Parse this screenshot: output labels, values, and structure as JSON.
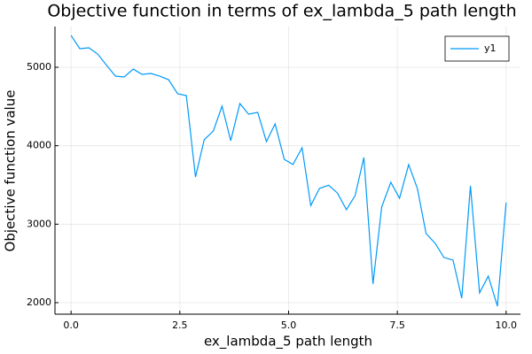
{
  "chart_data": {
    "type": "line",
    "title": "Objective function in terms of ex_lambda_5 path length",
    "x_label": "ex_lambda_5 path length",
    "y_label": "Objective function value",
    "x": [
      0,
      0.2,
      0.41,
      0.61,
      0.82,
      1.02,
      1.22,
      1.43,
      1.63,
      1.84,
      2.04,
      2.24,
      2.45,
      2.65,
      2.86,
      3.06,
      3.27,
      3.47,
      3.67,
      3.88,
      4.08,
      4.29,
      4.49,
      4.69,
      4.9,
      5.1,
      5.31,
      5.51,
      5.71,
      5.92,
      6.12,
      6.33,
      6.53,
      6.73,
      6.94,
      7.14,
      7.35,
      7.55,
      7.76,
      7.96,
      8.16,
      8.37,
      8.57,
      8.78,
      8.98,
      9.18,
      9.39,
      9.59,
      9.8,
      10
    ],
    "series": [
      {
        "name": "y1",
        "color": "#009af9",
        "values": [
          5406,
          5237,
          5248,
          5169,
          5023,
          4887,
          4876,
          4977,
          4910,
          4921,
          4887,
          4842,
          4662,
          4639,
          3602,
          4076,
          4188,
          4504,
          4064,
          4538,
          4402,
          4425,
          4053,
          4278,
          3827,
          3760,
          3974,
          3237,
          3456,
          3496,
          3399,
          3185,
          3365,
          3850,
          2238,
          3219,
          3534,
          3331,
          3760,
          3456,
          2881,
          2756,
          2576,
          2542,
          2056,
          3489,
          2125,
          2339,
          1955,
          3275
        ]
      }
    ],
    "xlim": [
      -0.37,
      10.33
    ],
    "ylim": [
      1853,
      5519
    ],
    "xticks": [
      {
        "value": 0,
        "label": "0.0"
      },
      {
        "value": 2.5,
        "label": "2.5"
      },
      {
        "value": 5,
        "label": "5.0"
      },
      {
        "value": 7.5,
        "label": "7.5"
      },
      {
        "value": 10,
        "label": "10.0"
      }
    ],
    "yticks": [
      2000,
      3000,
      4000,
      5000
    ],
    "grid": true,
    "legend_position": "top-right"
  }
}
